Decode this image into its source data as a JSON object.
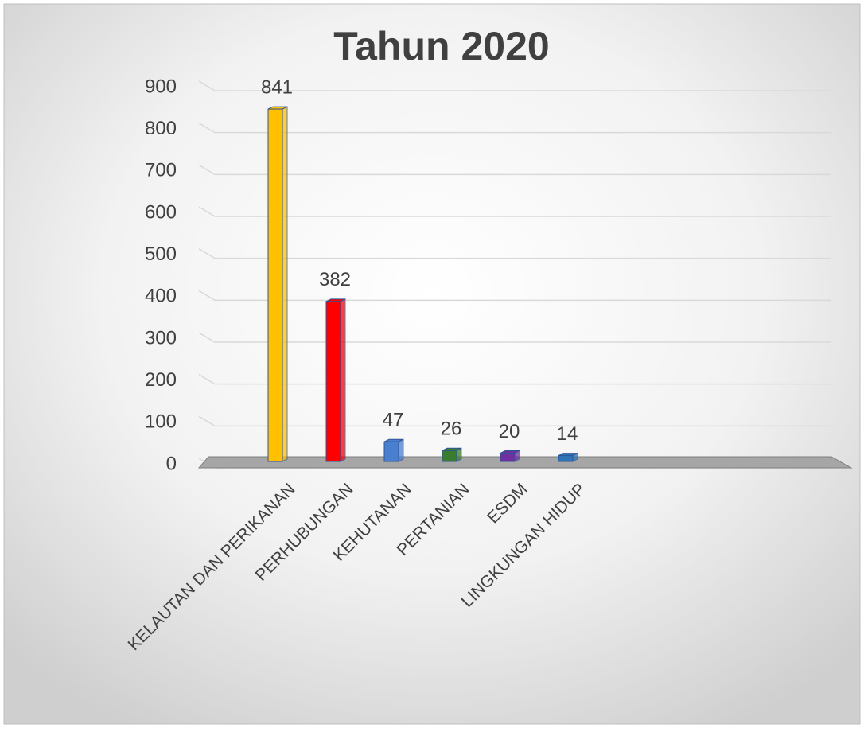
{
  "chart_data": {
    "type": "bar",
    "title": "Tahun 2020",
    "categories": [
      "KELAUTAN DAN PERIKANAN",
      "PERHUBUNGAN",
      "KEHUTANAN",
      "PERTANIAN",
      "ESDM",
      "LINGKUNGAN HIDUP"
    ],
    "values": [
      841,
      382,
      47,
      26,
      20,
      14
    ],
    "colors": [
      "#ffc000",
      "#ff0000",
      "#4a7fd0",
      "#3b7d2e",
      "#7030a0",
      "#2e75b6"
    ],
    "ylim": [
      0,
      900
    ],
    "yticks": [
      0,
      100,
      200,
      300,
      400,
      500,
      600,
      700,
      800,
      900
    ],
    "grid": true
  }
}
